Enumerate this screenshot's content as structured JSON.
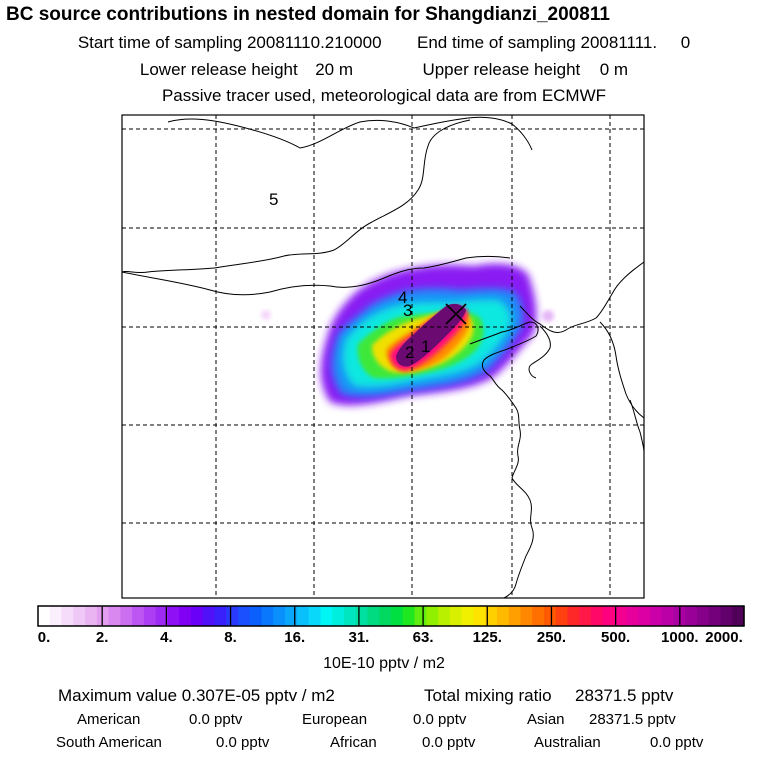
{
  "header": {
    "title": "BC  source contributions in nested domain for Shangdianzi_200811",
    "start_label": "Start time of sampling",
    "start_value": "20081110.210000",
    "end_label": "End time of sampling",
    "end_value": "20081111.     0",
    "lower_label": "Lower release height",
    "lower_value": "20 m",
    "upper_label": "Upper release height",
    "upper_value": "0 m",
    "tracer_note": "Passive tracer used, meteorological data are from ECMWF"
  },
  "chart_data": {
    "type": "heatmap",
    "title": "BC  source contributions in nested domain for Shangdianzi_200811",
    "map_labels": [
      "1",
      "2",
      "3",
      "4",
      "5"
    ],
    "colorbar": {
      "tick_labels": [
        "0.",
        "2.",
        "4.",
        "8.",
        "16.",
        "31.",
        "63.",
        "125.",
        "250.",
        "500.",
        "1000.",
        "2000."
      ],
      "units": "10E-10 pptv / m2",
      "segments_per_interval": 6,
      "colors": [
        "#ffffff",
        "#fbeefd",
        "#f6dcfb",
        "#f0c8f7",
        "#eab4f3",
        "#e39ef0",
        "#d888ee",
        "#cc6ef0",
        "#bd55f2",
        "#ad3ef4",
        "#a02af5",
        "#9010f5",
        "#8000f5",
        "#6a00f7",
        "#5010f8",
        "#3a20fa",
        "#2a3afc",
        "#1a50fd",
        "#0a60fd",
        "#0a78fc",
        "#0a90fb",
        "#0aa8fb",
        "#0ac0fb",
        "#0ad8fb",
        "#00f5f5",
        "#00eedd",
        "#00e6c0",
        "#00e0a0",
        "#00da80",
        "#00d860",
        "#00e040",
        "#20e820",
        "#60ee10",
        "#90f000",
        "#b8f000",
        "#d8f000",
        "#f0f000",
        "#ffe400",
        "#ffd000",
        "#ffba00",
        "#ffa000",
        "#ff8800",
        "#ff7000",
        "#ff5a00",
        "#ff4010",
        "#ff2828",
        "#ff1848",
        "#ff0868",
        "#ff0080",
        "#f40090",
        "#e8009c",
        "#dc00a4",
        "#cc00a8",
        "#bc00a8",
        "#aa00a4",
        "#980098",
        "#86008a",
        "#74007c",
        "#62006c",
        "#500058"
      ]
    }
  },
  "stats": {
    "max_label": "Maximum value",
    "max_value": "0.307E-05 pptv / m2",
    "total_label": "Total mixing ratio",
    "total_value": "28371.5 pptv",
    "regions": [
      {
        "name": "American",
        "value": "0.0 pptv"
      },
      {
        "name": "European",
        "value": "0.0 pptv"
      },
      {
        "name": "Asian",
        "value": "28371.5 pptv"
      },
      {
        "name": "South American",
        "value": "0.0 pptv"
      },
      {
        "name": "African",
        "value": "0.0 pptv"
      },
      {
        "name": "Australian",
        "value": "0.0 pptv"
      }
    ]
  }
}
